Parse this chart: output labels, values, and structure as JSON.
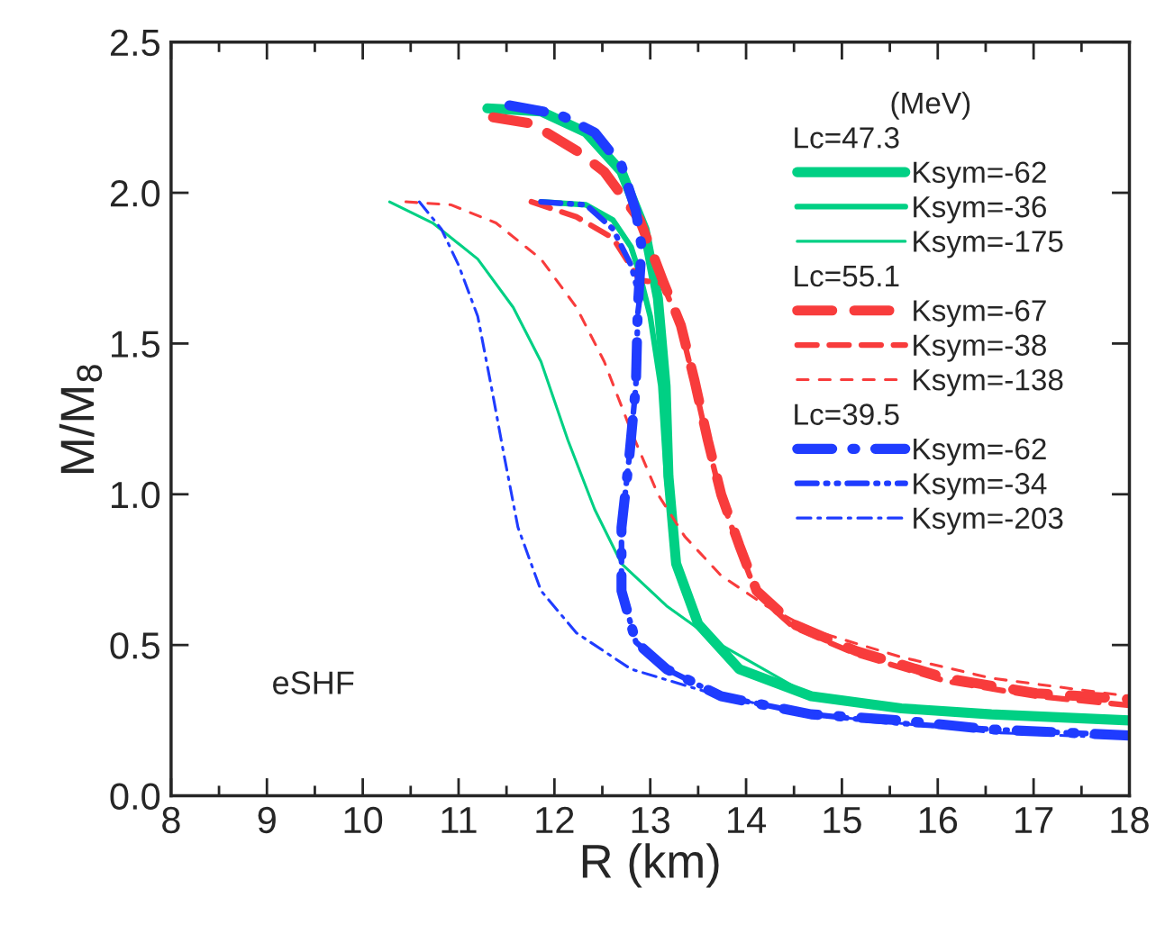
{
  "chart_data": {
    "type": "line",
    "xlabel": "R (km)",
    "ylabel": "M/M$_{8}$",
    "xlim": [
      8,
      18
    ],
    "xticks": [
      8,
      9,
      10,
      11,
      12,
      13,
      14,
      15,
      16,
      17,
      18
    ],
    "ylim": [
      0,
      2.5
    ],
    "yticks": [
      {
        "value": 0,
        "label": "0.0"
      },
      {
        "value": 0.5,
        "label": "0.5"
      },
      {
        "value": 1.0,
        "label": "1.0"
      },
      {
        "value": 1.5,
        "label": "1.5"
      },
      {
        "value": 2.0,
        "label": "2.0"
      },
      {
        "value": 2.5,
        "label": "2.5"
      }
    ],
    "grid": false,
    "legend": "top right",
    "legend_title": "(MeV)",
    "annotations": [
      "eSHF",
      "Lc=47.3",
      "Lc=55.1",
      "Lc=39.5"
    ],
    "series": [
      {
        "name": "Ksym=-62",
        "color": "#00d084",
        "line_style": "solid",
        "x": [
          11.3,
          11.86,
          12.33,
          12.7,
          12.94,
          13.08,
          13.16,
          13.19,
          13.27,
          13.5,
          13.93,
          14.68,
          15.62,
          16.56,
          18.0
        ],
        "values": [
          2.28,
          2.27,
          2.2,
          2.07,
          1.88,
          1.65,
          1.36,
          1.06,
          0.77,
          0.57,
          0.42,
          0.33,
          0.29,
          0.27,
          0.25
        ]
      },
      {
        "name": "Ksym=-36",
        "color": "#00d084",
        "line_style": "solid",
        "x": [
          11.86,
          12.33,
          12.61,
          12.8,
          12.89,
          13.0,
          13.11,
          13.17,
          13.27,
          13.5,
          13.93,
          14.68,
          15.62,
          16.56,
          18.0
        ],
        "values": [
          1.97,
          1.96,
          1.91,
          1.82,
          1.73,
          1.59,
          1.36,
          1.06,
          0.77,
          0.57,
          0.42,
          0.33,
          0.29,
          0.27,
          0.25
        ]
      },
      {
        "name": "Ksym=-175",
        "color": "#00d084",
        "line_style": "solid",
        "x": [
          10.28,
          10.73,
          11.2,
          11.57,
          11.86,
          12.14,
          12.42,
          12.7,
          13.17,
          13.74,
          14.68,
          15.62,
          16.56,
          18.0
        ],
        "values": [
          1.97,
          1.9,
          1.78,
          1.62,
          1.44,
          1.18,
          0.95,
          0.77,
          0.63,
          0.5,
          0.33,
          0.29,
          0.27,
          0.25
        ]
      },
      {
        "name": "Ksym=-67",
        "color": "#f83c3c",
        "line_style": "dashed",
        "x": [
          11.36,
          11.76,
          12.23,
          12.52,
          12.89,
          13.13,
          13.32,
          13.46,
          13.6,
          13.74,
          13.93,
          14.11,
          14.49,
          15.15,
          16.09,
          17.03,
          18.0
        ],
        "values": [
          2.25,
          2.23,
          2.14,
          2.07,
          1.91,
          1.71,
          1.56,
          1.38,
          1.18,
          1.0,
          0.83,
          0.68,
          0.57,
          0.48,
          0.39,
          0.34,
          0.32
        ]
      },
      {
        "name": "Ksym=-38",
        "color": "#f83c3c",
        "line_style": "dashed",
        "x": [
          11.76,
          12.23,
          12.61,
          12.89,
          13.13,
          13.32,
          13.46,
          13.6,
          13.74,
          13.93,
          14.11,
          14.49,
          15.15,
          16.09,
          17.03,
          18.0
        ],
        "values": [
          1.97,
          1.92,
          1.85,
          1.71,
          1.7,
          1.55,
          1.37,
          1.17,
          0.99,
          0.82,
          0.67,
          0.56,
          0.47,
          0.38,
          0.33,
          0.3
        ]
      },
      {
        "name": "Ksym=-138",
        "color": "#f83c3c",
        "line_style": "dashed",
        "x": [
          10.45,
          10.92,
          11.39,
          11.86,
          12.23,
          12.52,
          12.8,
          13.08,
          13.36,
          13.74,
          14.21,
          14.68,
          15.62,
          16.56,
          18.0
        ],
        "values": [
          1.97,
          1.96,
          1.9,
          1.78,
          1.62,
          1.44,
          1.21,
          1.0,
          0.86,
          0.73,
          0.63,
          0.55,
          0.46,
          0.39,
          0.33
        ]
      },
      {
        "name": "Ksym=-62",
        "color": "#1f3cff",
        "line_style": "dashdot",
        "x": [
          11.53,
          12.05,
          12.42,
          12.7,
          12.85,
          12.91,
          12.87,
          12.85,
          12.78,
          12.7,
          12.7,
          12.85,
          13.17,
          13.74,
          14.68,
          15.62,
          16.56,
          18.0
        ],
        "values": [
          2.29,
          2.26,
          2.2,
          2.09,
          1.94,
          1.82,
          1.62,
          1.36,
          1.12,
          0.89,
          0.68,
          0.51,
          0.42,
          0.33,
          0.27,
          0.25,
          0.22,
          0.2
        ]
      },
      {
        "name": "Ksym=-34",
        "color": "#1f3cff",
        "line_style": "dashdot",
        "x": [
          11.86,
          12.33,
          12.61,
          12.8,
          12.89,
          12.87,
          12.85,
          12.78,
          12.7,
          12.7,
          12.85,
          13.17,
          13.74,
          14.68,
          15.62,
          16.56,
          18.0
        ],
        "values": [
          1.97,
          1.96,
          1.88,
          1.76,
          1.65,
          1.6,
          1.36,
          1.12,
          0.89,
          0.68,
          0.51,
          0.42,
          0.33,
          0.27,
          0.24,
          0.22,
          0.2
        ]
      },
      {
        "name": "Ksym=-203",
        "color": "#1f3cff",
        "line_style": "dashdot",
        "x": [
          10.59,
          10.82,
          11.0,
          11.2,
          11.34,
          11.48,
          11.62,
          11.86,
          12.23,
          12.8,
          13.74,
          14.68,
          15.62,
          16.56,
          18.0
        ],
        "values": [
          1.97,
          1.88,
          1.76,
          1.59,
          1.36,
          1.12,
          0.89,
          0.68,
          0.54,
          0.42,
          0.33,
          0.27,
          0.24,
          0.21,
          0.19
        ]
      }
    ]
  }
}
